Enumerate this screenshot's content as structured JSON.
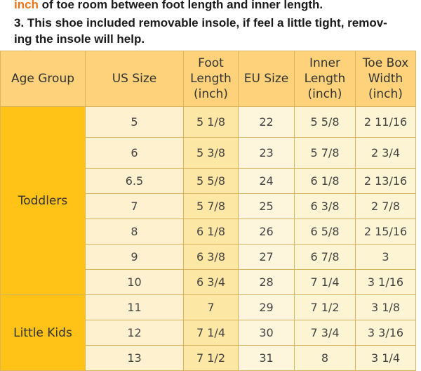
{
  "notes": {
    "line1_highlight": "inch",
    "line1_rest": " of toe room between foot length and inner length.",
    "line2": "3. This shoe included removable insole, if feel a little tight, remov-",
    "line3": "ing the insole will help."
  },
  "table": {
    "headers": {
      "age_group": "Age Group",
      "us_size": "US Size",
      "foot_length": [
        "Foot",
        "Length",
        "(inch)"
      ],
      "eu_size": "EU Size",
      "inner_length": [
        "Inner",
        "Length",
        "(inch)"
      ],
      "toe_box": [
        "Toe Box",
        "Width",
        "(inch)"
      ]
    },
    "groups": [
      "Toddlers",
      "Little Kids"
    ],
    "rows": [
      {
        "us": "5",
        "foot": "5 1/8",
        "eu": "22",
        "inner": "5 5/8",
        "toe": "2 11/16"
      },
      {
        "us": "6",
        "foot": "5 3/8",
        "eu": "23",
        "inner": "5 7/8",
        "toe": "2 3/4"
      },
      {
        "us": "6.5",
        "foot": "5 5/8",
        "eu": "24",
        "inner": "6 1/8",
        "toe": "2 13/16"
      },
      {
        "us": "7",
        "foot": "5 7/8",
        "eu": "25",
        "inner": "6 3/8",
        "toe": "2 7/8"
      },
      {
        "us": "8",
        "foot": "6 1/8",
        "eu": "26",
        "inner": "6 5/8",
        "toe": "2 15/16"
      },
      {
        "us": "9",
        "foot": "6 3/8",
        "eu": "27",
        "inner": "6 7/8",
        "toe": "3"
      },
      {
        "us": "10",
        "foot": "6 3/4",
        "eu": "28",
        "inner": "7 1/4",
        "toe": "3 1/16"
      },
      {
        "us": "11",
        "foot": "7",
        "eu": "29",
        "inner": "7 1/2",
        "toe": "3 1/8"
      },
      {
        "us": "12",
        "foot": "7 1/4",
        "eu": "30",
        "inner": "7 3/4",
        "toe": "3 3/16"
      },
      {
        "us": "13",
        "foot": "7 1/2",
        "eu": "31",
        "inner": "8",
        "toe": "3 1/4"
      }
    ]
  }
}
